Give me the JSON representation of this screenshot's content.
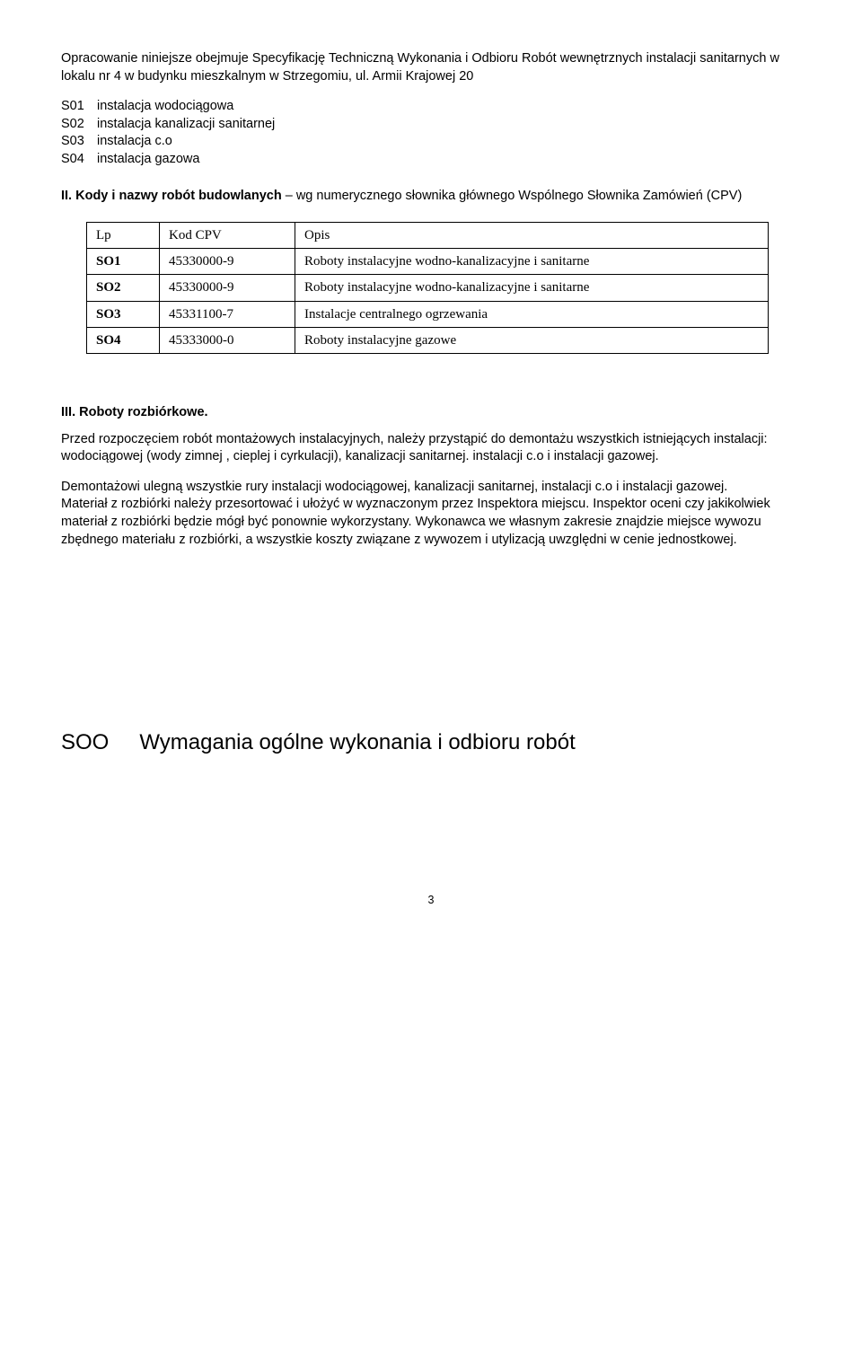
{
  "intro": {
    "paragraph": "Opracowanie niniejsze obejmuje Specyfikację Techniczną Wykonania i Odbioru Robót wewnętrznych instalacji sanitarnych w lokalu nr 4 w budynku mieszkalnym w Strzegomiu, ul. Armii Krajowej 20"
  },
  "s_list": [
    {
      "code": "S01",
      "text": "instalacja wodociągowa"
    },
    {
      "code": "S02",
      "text": "instalacja kanalizacji sanitarnej"
    },
    {
      "code": "S03",
      "text": "instalacja c.o"
    },
    {
      "code": "S04",
      "text": "instalacja gazowa"
    }
  ],
  "section2": {
    "num": "II.",
    "bold": "Kody i nazwy robót budowlanych",
    "rest": " – wg numerycznego słownika głównego Wspólnego Słownika Zamówień (CPV)"
  },
  "cpv_table": {
    "headers": {
      "lp": "Lp",
      "kod": "Kod CPV",
      "opis": "Opis"
    },
    "rows": [
      {
        "lp": "SO1",
        "kod": "45330000-9",
        "opis": "Roboty instalacyjne wodno-kanalizacyjne i sanitarne"
      },
      {
        "lp": "SO2",
        "kod": "45330000-9",
        "opis": "Roboty instalacyjne wodno-kanalizacyjne i sanitarne"
      },
      {
        "lp": "SO3",
        "kod": "45331100-7",
        "opis": "Instalacje centralnego ogrzewania"
      },
      {
        "lp": "SO4",
        "kod": "45333000-0",
        "opis": "Roboty instalacyjne gazowe"
      }
    ]
  },
  "section3": {
    "title": "III. Roboty rozbiórkowe.",
    "p1": "Przed rozpoczęciem robót montażowych instalacyjnych, należy przystąpić do demontażu wszystkich istniejących instalacji: wodociągowej (wody zimnej , cieplej i cyrkulacji), kanalizacji sanitarnej. instalacji c.o i instalacji gazowej.",
    "p2": "Demontażowi ulegną wszystkie rury instalacji wodociągowej, kanalizacji sanitarnej, instalacji c.o i instalacji gazowej.",
    "p3": "Materiał z rozbiórki należy przesortować i ułożyć w wyznaczonym przez Inspektora miejscu. Inspektor oceni czy jakikolwiek materiał z rozbiórki będzie mógł być ponownie wykorzystany. Wykonawca we własnym zakresie znajdzie miejsce wywozu zbędnego materiału z rozbiórki, a wszystkie koszty związane z wywozem i utylizacją uwzględni w cenie jednostkowej."
  },
  "soo": {
    "code": "SOO",
    "title": "Wymagania ogólne wykonania i odbioru robót"
  },
  "page_number": "3"
}
